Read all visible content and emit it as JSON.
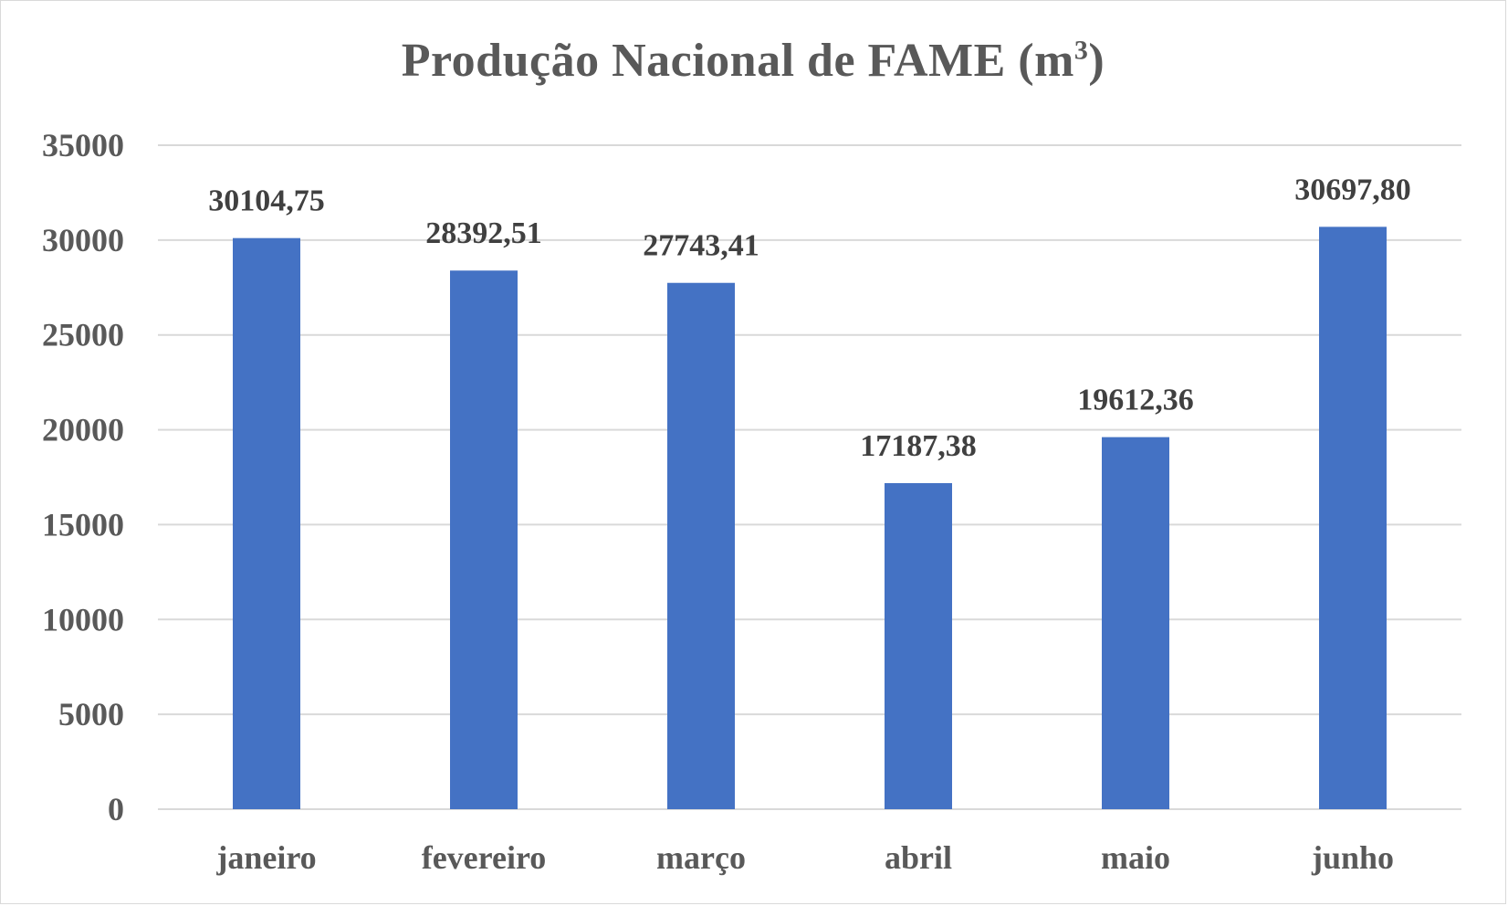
{
  "chart_data": {
    "type": "bar",
    "title": "Produção Nacional de FAME (m",
    "title_superscript": "3",
    "title_suffix": ")",
    "categories": [
      "janeiro",
      "fevereiro",
      "março",
      "abril",
      "maio",
      "junho"
    ],
    "values": [
      30104.75,
      28392.51,
      27743.41,
      17187.38,
      19612.36,
      30697.8
    ],
    "data_labels": [
      "30104,75",
      "28392,51",
      "27743,41",
      "17187,38",
      "19612,36",
      "30697,80"
    ],
    "yticks": [
      "0",
      "5000",
      "10000",
      "15000",
      "20000",
      "25000",
      "30000",
      "35000"
    ],
    "ylim": [
      0,
      35000
    ],
    "grid": true,
    "bar_color": "#4472c4",
    "grid_color": "#d9d9d9"
  }
}
